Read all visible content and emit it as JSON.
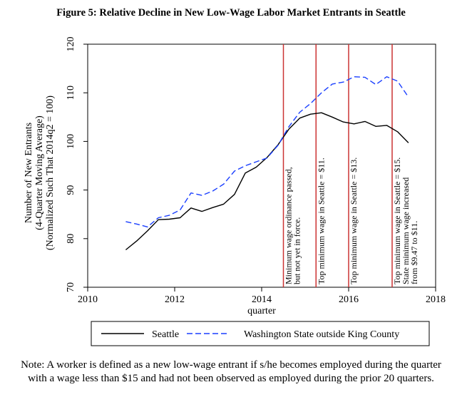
{
  "title": "Figure 5: Relative Decline in New Low-Wage Labor Market Entrants in Seattle",
  "note": "Note: A worker is defined as a new low-wage entrant if s/he becomes employed during the quarter with a wage less than $15 and had not been observed as employed during the prior 20 quarters.",
  "chart_data": {
    "type": "line",
    "title": "Figure 5: Relative Decline in New Low-Wage Labor Market Entrants in Seattle",
    "xlabel": "quarter",
    "ylabel_lines": [
      "Number of New Entrants",
      "(4-Quarter Moving Average)",
      "(Normalized Such That 2014q2 = 100)"
    ],
    "xlim": [
      2010,
      2018
    ],
    "ylim": [
      70,
      120
    ],
    "x_ticks": [
      2010,
      2012,
      2014,
      2016,
      2018
    ],
    "x_tick_labels": [
      "2010",
      "2012",
      "2014",
      "2016",
      "2018"
    ],
    "y_ticks": [
      70,
      80,
      90,
      100,
      110,
      120
    ],
    "y_tick_labels": [
      "70",
      "80",
      "90",
      "100",
      "110",
      "120"
    ],
    "grid": false,
    "legend_position": "bottom",
    "x": [
      2010.875,
      2011.125,
      2011.375,
      2011.625,
      2011.875,
      2012.125,
      2012.375,
      2012.625,
      2012.875,
      2013.125,
      2013.375,
      2013.625,
      2013.875,
      2014.125,
      2014.375,
      2014.625,
      2014.875,
      2015.125,
      2015.375,
      2015.625,
      2015.875,
      2016.125,
      2016.375,
      2016.625,
      2016.875,
      2017.125,
      2017.375
    ],
    "series": [
      {
        "name": "Seattle",
        "color": "#000000",
        "dash": "solid",
        "values": [
          77.7,
          79.5,
          81.6,
          83.9,
          84.0,
          84.3,
          86.3,
          85.6,
          86.4,
          87.1,
          89.1,
          93.5,
          94.7,
          96.7,
          99.3,
          102.5,
          104.8,
          105.6,
          105.9,
          105.0,
          104.0,
          103.6,
          104.1,
          103.1,
          103.3,
          102.0,
          99.7
        ]
      },
      {
        "name": "Washington State outside King County",
        "color": "#1a3fff",
        "dash": "dashed",
        "values": [
          83.5,
          83.0,
          82.4,
          84.3,
          84.8,
          85.9,
          89.4,
          88.9,
          89.8,
          91.2,
          93.9,
          95.0,
          95.8,
          96.6,
          99.2,
          103.0,
          106.0,
          107.8,
          110.0,
          111.8,
          112.2,
          113.3,
          113.2,
          111.7,
          113.3,
          112.4,
          109.1
        ]
      }
    ],
    "vertical_lines": [
      {
        "x": 2014.5,
        "color": "#cc3333",
        "label_lines": [
          "Minimum wage ordinance passed,",
          "but not yet in force."
        ]
      },
      {
        "x": 2015.25,
        "color": "#cc3333",
        "label_lines": [
          "Top minimum wage in Seattle = $11."
        ]
      },
      {
        "x": 2016.0,
        "color": "#cc3333",
        "label_lines": [
          "Top minimum wage in Seattle = $13."
        ]
      },
      {
        "x": 2017.0,
        "color": "#cc3333",
        "label_lines": [
          "Top minimum wage in Seattle = $15.",
          "State minimum wage increased",
          "from $9.47 to $11."
        ]
      }
    ]
  }
}
